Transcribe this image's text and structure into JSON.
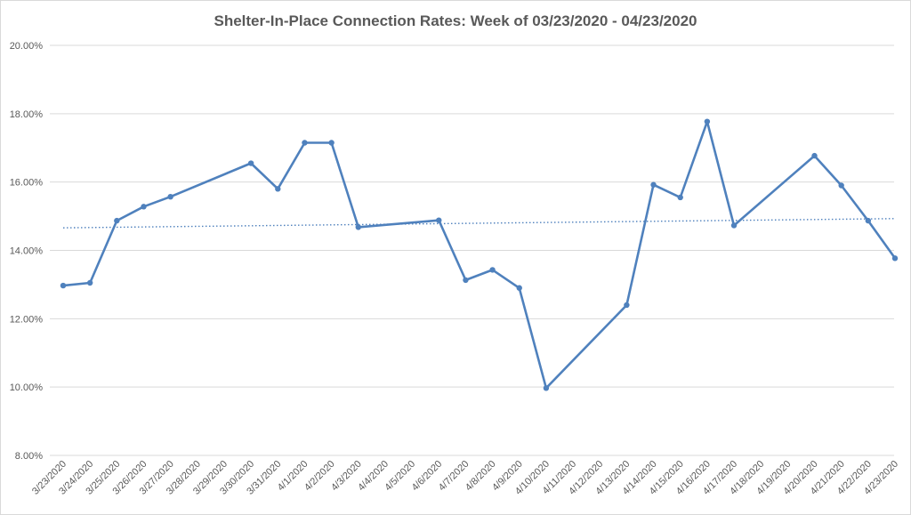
{
  "chart_data": {
    "type": "line",
    "title": "Shelter-In-Place Connection Rates: Week of 03/23/2020 - 04/23/2020",
    "xlabel": "",
    "ylabel": "",
    "categories": [
      "3/23/2020",
      "3/24/2020",
      "3/25/2020",
      "3/26/2020",
      "3/27/2020",
      "3/28/2020",
      "3/29/2020",
      "3/30/2020",
      "3/31/2020",
      "4/1/2020",
      "4/2/2020",
      "4/3/2020",
      "4/4/2020",
      "4/5/2020",
      "4/6/2020",
      "4/7/2020",
      "4/8/2020",
      "4/9/2020",
      "4/10/2020",
      "4/11/2020",
      "4/12/2020",
      "4/13/2020",
      "4/14/2020",
      "4/15/2020",
      "4/16/2020",
      "4/17/2020",
      "4/18/2020",
      "4/19/2020",
      "4/20/2020",
      "4/21/2020",
      "4/22/2020",
      "4/23/2020"
    ],
    "series": [
      {
        "values": [
          12.97,
          13.05,
          14.87,
          15.28,
          15.57,
          null,
          null,
          16.55,
          15.8,
          17.15,
          17.15,
          14.68,
          null,
          null,
          14.88,
          13.13,
          13.43,
          12.9,
          9.97,
          null,
          null,
          12.4,
          15.92,
          15.55,
          17.77,
          14.73,
          null,
          null,
          16.77,
          15.9,
          14.87,
          13.77
        ],
        "color": "#4f81bd"
      }
    ],
    "trendline": {
      "type": "linear",
      "start": 14.66,
      "end": 14.93,
      "color": "#4f81bd",
      "style": "dotted"
    },
    "yticks": [
      "8.00%",
      "10.00%",
      "12.00%",
      "14.00%",
      "16.00%",
      "18.00%",
      "20.00%"
    ],
    "ylim": [
      8,
      20
    ],
    "grid": true,
    "legend": "none"
  }
}
